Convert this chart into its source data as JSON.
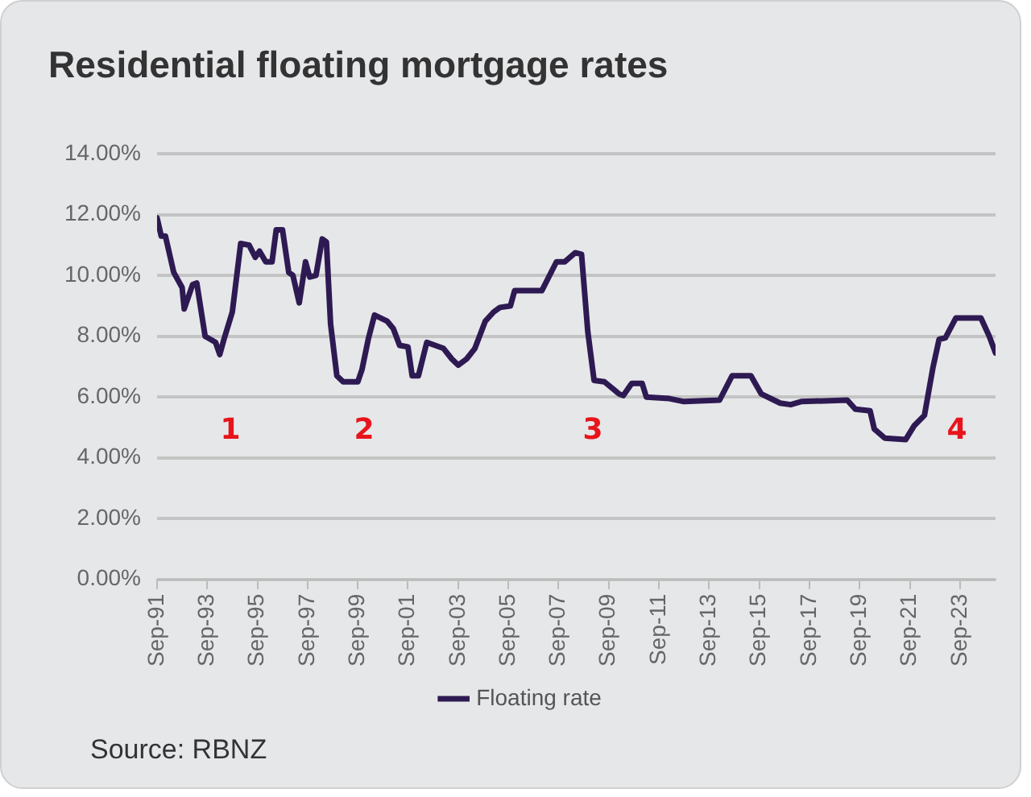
{
  "chart_data": {
    "type": "line",
    "title": "Residential floating mortgage rates",
    "annotations": [
      "1",
      "2",
      "3",
      "4",
      "Source: RBNZ"
    ],
    "x": [
      "1991-09",
      "1991-11",
      "1992-01",
      "1992-05",
      "1992-09",
      "1992-10",
      "1993-02",
      "1993-04",
      "1993-08",
      "1994-01",
      "1994-03",
      "1994-05",
      "1994-09",
      "1995-01",
      "1995-05",
      "1995-08",
      "1995-10",
      "1996-01",
      "1996-04",
      "1996-06",
      "1996-09",
      "1996-12",
      "1997-02",
      "1997-05",
      "1997-08",
      "1997-10",
      "1998-01",
      "1998-04",
      "1998-06",
      "1998-08",
      "1998-11",
      "1999-02",
      "1999-09",
      "1999-11",
      "2000-02",
      "2000-05",
      "2000-11",
      "2001-02",
      "2001-05",
      "2001-09",
      "2001-11",
      "2002-02",
      "2002-06",
      "2003-02",
      "2003-06",
      "2003-09",
      "2004-01",
      "2004-05",
      "2004-10",
      "2005-02",
      "2005-05",
      "2005-10",
      "2005-12",
      "2007-01",
      "2007-08",
      "2007-12",
      "2008-05",
      "2008-08",
      "2008-11",
      "2009-02",
      "2009-07",
      "2010-02",
      "2010-04",
      "2010-08",
      "2011-01",
      "2011-03",
      "2012-02",
      "2012-09",
      "2014-02",
      "2014-08",
      "2015-05",
      "2015-10",
      "2016-07",
      "2016-12",
      "2017-05",
      "2019-03",
      "2019-07",
      "2020-02",
      "2020-04",
      "2020-09",
      "2021-07",
      "2021-11",
      "2022-04",
      "2022-08",
      "2022-11",
      "2023-02",
      "2023-07",
      "2024-07",
      "2024-11",
      "2025-02"
    ],
    "series": [
      {
        "name": "Floating rate",
        "color": "#2e1a52",
        "values": [
          11.9,
          11.3,
          11.3,
          10.1,
          9.6,
          8.9,
          9.7,
          9.75,
          8.0,
          7.8,
          7.4,
          7.9,
          8.8,
          11.05,
          11.0,
          10.6,
          10.8,
          10.45,
          10.45,
          11.5,
          11.5,
          10.1,
          10.0,
          9.1,
          10.45,
          9.95,
          10.0,
          11.2,
          11.1,
          8.4,
          6.7,
          6.5,
          6.5,
          6.9,
          7.9,
          8.7,
          8.5,
          8.25,
          7.7,
          7.65,
          6.7,
          6.7,
          7.8,
          7.6,
          7.25,
          7.05,
          7.25,
          7.6,
          8.5,
          8.8,
          8.95,
          9.0,
          9.5,
          9.5,
          10.45,
          10.45,
          10.75,
          10.7,
          8.15,
          6.55,
          6.5,
          6.1,
          6.05,
          6.45,
          6.45,
          6.0,
          5.95,
          5.85,
          5.9,
          6.7,
          6.7,
          6.1,
          5.8,
          5.75,
          5.85,
          5.9,
          5.6,
          5.55,
          4.95,
          4.65,
          4.6,
          5.05,
          5.4,
          6.95,
          7.9,
          7.95,
          8.6,
          8.6,
          8.0,
          7.45
        ]
      }
    ],
    "xlim": [
      "1991-09",
      "2025-02"
    ],
    "xticks": [
      {
        "value": "1991-09",
        "label": "Sep-91"
      },
      {
        "value": "1993-09",
        "label": "Sep-93"
      },
      {
        "value": "1995-09",
        "label": "Sep-95"
      },
      {
        "value": "1997-09",
        "label": "Sep-97"
      },
      {
        "value": "1999-09",
        "label": "Sep-99"
      },
      {
        "value": "2001-09",
        "label": "Sep-01"
      },
      {
        "value": "2003-09",
        "label": "Sep-03"
      },
      {
        "value": "2005-09",
        "label": "Sep-05"
      },
      {
        "value": "2007-09",
        "label": "Sep-07"
      },
      {
        "value": "2009-09",
        "label": "Sep-09"
      },
      {
        "value": "2011-09",
        "label": "Sep-11"
      },
      {
        "value": "2013-09",
        "label": "Sep-13"
      },
      {
        "value": "2015-09",
        "label": "Sep-15"
      },
      {
        "value": "2017-09",
        "label": "Sep-17"
      },
      {
        "value": "2019-09",
        "label": "Sep-19"
      },
      {
        "value": "2021-09",
        "label": "Sep-21"
      },
      {
        "value": "2023-09",
        "label": "Sep-23"
      }
    ],
    "ylim": [
      0,
      14
    ],
    "yticks": [
      {
        "value": 0,
        "label": "0.00%"
      },
      {
        "value": 2,
        "label": "2.00%"
      },
      {
        "value": 4,
        "label": "4.00%"
      },
      {
        "value": 6,
        "label": "6.00%"
      },
      {
        "value": 8,
        "label": "8.00%"
      },
      {
        "value": 10,
        "label": "10.00%"
      },
      {
        "value": 12,
        "label": "12.00%"
      },
      {
        "value": 14,
        "label": "14.00%"
      }
    ],
    "grid": "y",
    "legend": "bottom",
    "marker": "none",
    "line_style": "solid"
  }
}
